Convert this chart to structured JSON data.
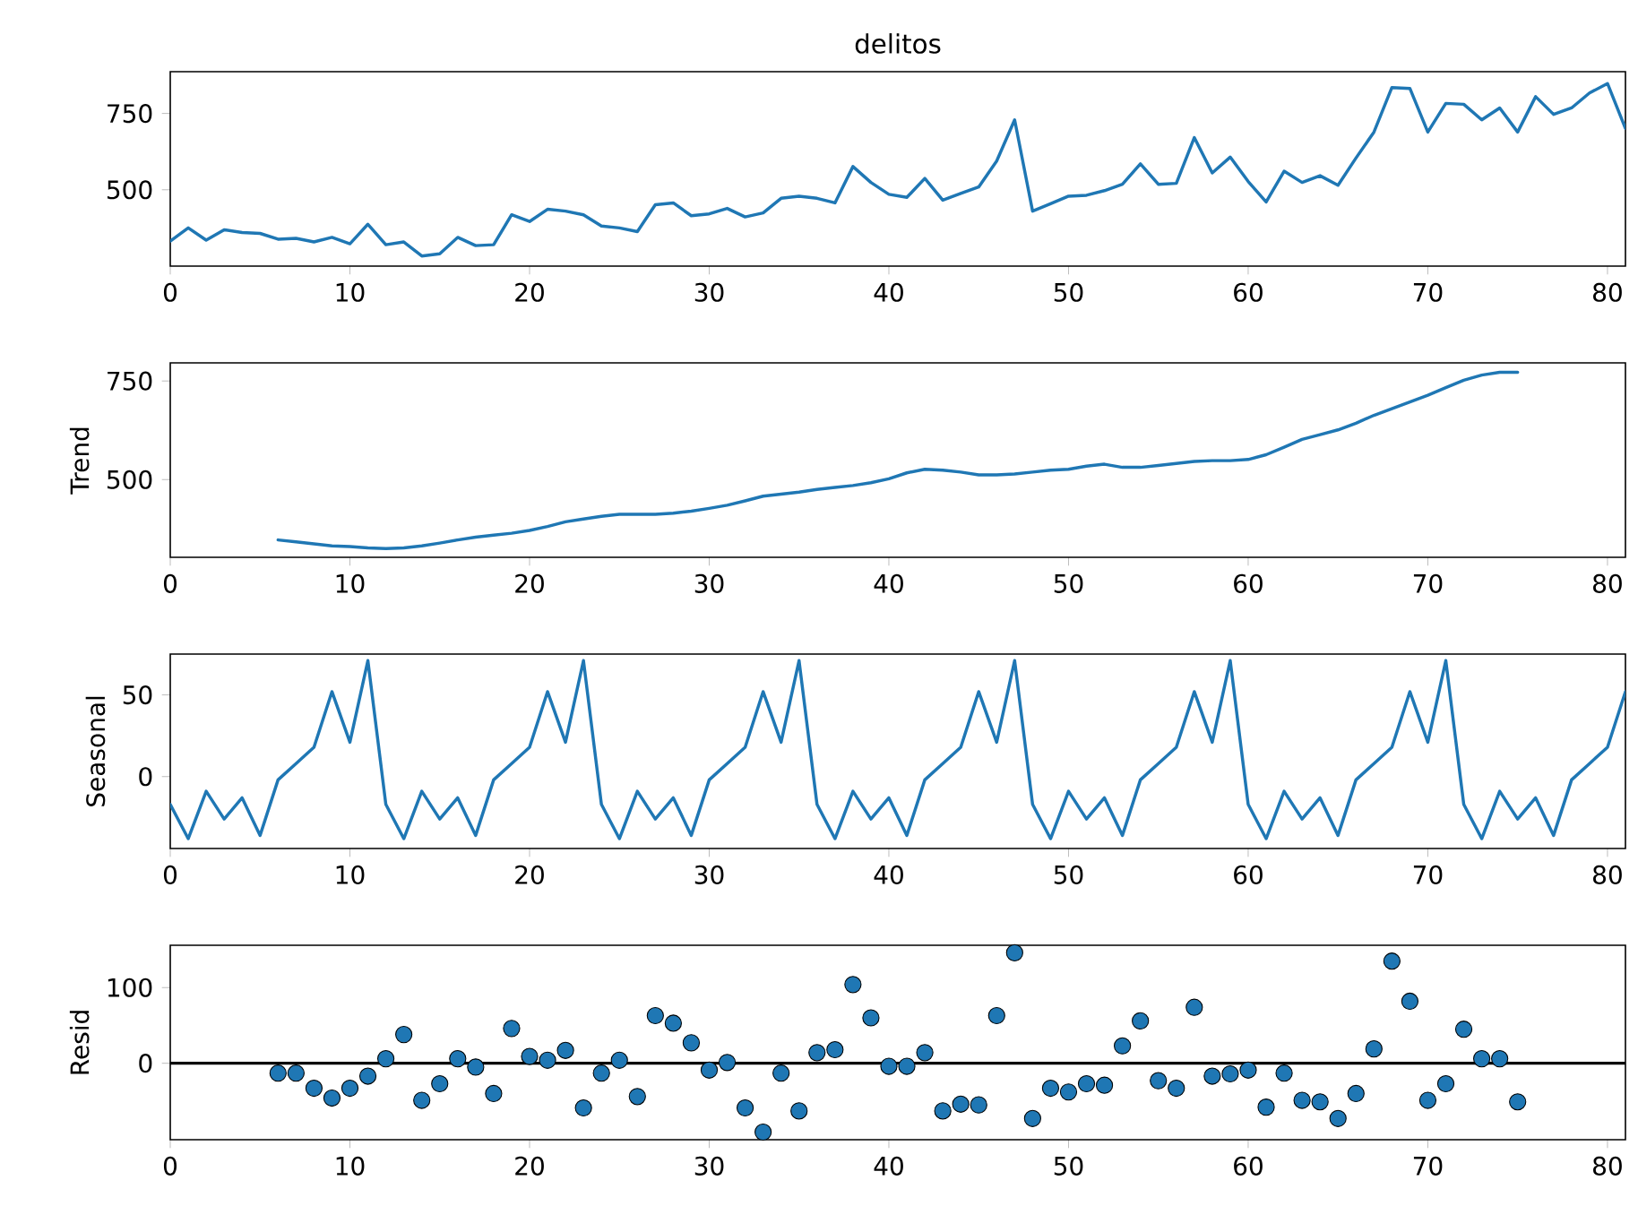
{
  "chart_data": [
    {
      "type": "line",
      "title": "delitos",
      "color": "#1f77b4",
      "x": [
        0,
        1,
        2,
        3,
        4,
        5,
        6,
        7,
        8,
        9,
        10,
        11,
        12,
        13,
        14,
        15,
        16,
        17,
        18,
        19,
        20,
        21,
        22,
        23,
        24,
        25,
        26,
        27,
        28,
        29,
        30,
        31,
        32,
        33,
        34,
        35,
        36,
        37,
        38,
        39,
        40,
        41,
        42,
        43,
        44,
        45,
        46,
        47,
        48,
        49,
        50,
        51,
        52,
        53,
        54,
        55,
        56,
        57,
        58,
        59,
        60,
        61,
        62,
        63,
        64,
        65,
        66,
        67,
        68,
        69,
        70,
        71,
        72,
        73,
        74,
        75,
        76,
        77,
        78,
        79,
        80,
        81
      ],
      "values": [
        332,
        375,
        335,
        369,
        360,
        357,
        338,
        341,
        329,
        344,
        323,
        387,
        320,
        329,
        283,
        290,
        344,
        317,
        320,
        418,
        396,
        436,
        430,
        418,
        381,
        375,
        363,
        451,
        457,
        415,
        421,
        439,
        411,
        424,
        472,
        479,
        472,
        457,
        576,
        524,
        485,
        475,
        537,
        466,
        488,
        509,
        594,
        729,
        430,
        454,
        479,
        482,
        497,
        518,
        585,
        518,
        521,
        671,
        555,
        607,
        527,
        460,
        561,
        524,
        546,
        515,
        604,
        689,
        835,
        832,
        689,
        783,
        780,
        729,
        768,
        689,
        805,
        747,
        768,
        817,
        848,
        701
      ],
      "xlim": [
        0,
        81
      ],
      "ylim": [
        250,
        887
      ],
      "xticks": [
        0,
        10,
        20,
        30,
        40,
        50,
        60,
        70,
        80
      ],
      "yticks": [
        500,
        750
      ]
    },
    {
      "type": "line",
      "ylabel": "Trend",
      "color": "#1f77b4",
      "x": [
        6,
        7,
        8,
        9,
        10,
        11,
        12,
        13,
        14,
        15,
        16,
        17,
        18,
        19,
        20,
        21,
        22,
        23,
        24,
        25,
        26,
        27,
        28,
        29,
        30,
        31,
        32,
        33,
        34,
        35,
        36,
        37,
        38,
        39,
        40,
        41,
        42,
        43,
        44,
        45,
        46,
        47,
        48,
        49,
        50,
        51,
        52,
        53,
        54,
        55,
        56,
        57,
        58,
        59,
        60,
        61,
        62,
        63,
        64,
        65,
        66,
        67,
        68,
        69,
        70,
        71,
        72,
        73,
        74,
        75
      ],
      "values": [
        347,
        342,
        337,
        332,
        330,
        327,
        325,
        327,
        332,
        339,
        347,
        354,
        359,
        364,
        371,
        381,
        393,
        400,
        407,
        412,
        412,
        412,
        415,
        420,
        427,
        435,
        446,
        458,
        463,
        468,
        475,
        480,
        485,
        492,
        502,
        517,
        526,
        524,
        519,
        512,
        512,
        514,
        519,
        524,
        526,
        534,
        539,
        531,
        531,
        536,
        541,
        546,
        548,
        548,
        551,
        563,
        582,
        602,
        614,
        626,
        643,
        663,
        680,
        697,
        714,
        733,
        752,
        765,
        772,
        772
      ],
      "xlim": [
        0,
        81
      ],
      "ylim": [
        303,
        796
      ],
      "xticks": [
        0,
        10,
        20,
        30,
        40,
        50,
        60,
        70,
        80
      ],
      "yticks": [
        500,
        750
      ]
    },
    {
      "type": "line",
      "ylabel": "Seasonal",
      "color": "#1f77b4",
      "x": [
        0,
        1,
        2,
        3,
        4,
        5,
        6,
        7,
        8,
        9,
        10,
        11,
        12,
        13,
        14,
        15,
        16,
        17,
        18,
        19,
        20,
        21,
        22,
        23,
        24,
        25,
        26,
        27,
        28,
        29,
        30,
        31,
        32,
        33,
        34,
        35,
        36,
        37,
        38,
        39,
        40,
        41,
        42,
        43,
        44,
        45,
        46,
        47,
        48,
        49,
        50,
        51,
        52,
        53,
        54,
        55,
        56,
        57,
        58,
        59,
        60,
        61,
        62,
        63,
        64,
        65,
        66,
        67,
        68,
        69,
        70,
        71,
        72,
        73,
        74,
        75,
        76,
        77,
        78,
        79,
        80,
        81
      ],
      "values": [
        -17,
        -38,
        -9,
        -26,
        -13,
        -36,
        -2,
        8,
        18,
        52,
        21,
        71,
        -17,
        -38,
        -9,
        -26,
        -13,
        -36,
        -2,
        8,
        18,
        52,
        21,
        71,
        -17,
        -38,
        -9,
        -26,
        -13,
        -36,
        -2,
        8,
        18,
        52,
        21,
        71,
        -17,
        -38,
        -9,
        -26,
        -13,
        -36,
        -2,
        8,
        18,
        52,
        21,
        71,
        -17,
        -38,
        -9,
        -26,
        -13,
        -36,
        -2,
        8,
        18,
        52,
        21,
        71,
        -17,
        -38,
        -9,
        -26,
        -13,
        -36,
        -2,
        8,
        18,
        52,
        21,
        71,
        -17,
        -38,
        -9,
        -26,
        -13,
        -36,
        -2,
        8,
        18,
        52
      ],
      "xlim": [
        0,
        81
      ],
      "ylim": [
        -44,
        75
      ],
      "xticks": [
        0,
        10,
        20,
        30,
        40,
        50,
        60,
        70,
        80
      ],
      "yticks": [
        0,
        50
      ]
    },
    {
      "type": "scatter",
      "ylabel": "Resid",
      "color": "#1f77b4",
      "marker": "circle",
      "x": [
        6,
        7,
        8,
        9,
        10,
        11,
        12,
        13,
        14,
        15,
        16,
        17,
        18,
        19,
        20,
        21,
        22,
        23,
        24,
        25,
        26,
        27,
        28,
        29,
        30,
        31,
        32,
        33,
        34,
        35,
        36,
        37,
        38,
        39,
        40,
        41,
        42,
        43,
        44,
        45,
        46,
        47,
        48,
        49,
        50,
        51,
        52,
        53,
        54,
        55,
        56,
        57,
        58,
        59,
        60,
        61,
        62,
        63,
        64,
        65,
        66,
        67,
        68,
        69,
        70,
        71,
        72,
        73,
        74,
        75
      ],
      "values": [
        -13,
        -13,
        -33,
        -46,
        -33,
        -17,
        6,
        38,
        -49,
        -27,
        6,
        -5,
        -40,
        46,
        9,
        4,
        17,
        -59,
        -13,
        4,
        -44,
        63,
        53,
        27,
        -9,
        1,
        -59,
        -91,
        -13,
        -63,
        14,
        18,
        104,
        60,
        -4,
        -4,
        14,
        -63,
        -54,
        -55,
        63,
        146,
        -73,
        -33,
        -38,
        -27,
        -29,
        23,
        56,
        -23,
        -33,
        74,
        -17,
        -14,
        -9,
        -58,
        -13,
        -49,
        -51,
        -73,
        -40,
        19,
        135,
        82,
        -49,
        -27,
        45,
        6,
        6,
        -51
      ],
      "xlim": [
        0,
        81
      ],
      "ylim": [
        -101,
        156
      ],
      "xticks": [
        0,
        10,
        20,
        30,
        40,
        50,
        60,
        70,
        80
      ],
      "yticks": [
        0,
        100
      ],
      "ref_lines": [
        {
          "axis": "y",
          "value": 0,
          "color": "#000000"
        }
      ]
    }
  ]
}
